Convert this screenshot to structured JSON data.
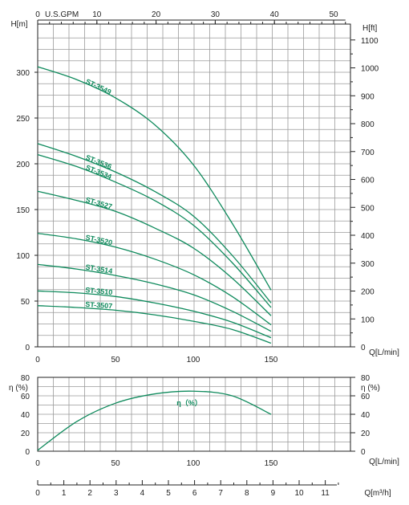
{
  "chart_data": [
    {
      "type": "line",
      "title": "",
      "xlabel": "Q[L/min]",
      "ylabel": "H[m]",
      "ylabel_right": "H[ft]",
      "top_axis_label": "U.S.GPM",
      "xlim": [
        0,
        205
      ],
      "ylim": [
        0,
        345
      ],
      "x_ticks": [
        "0",
        "50",
        "100",
        "150"
      ],
      "y_ticks": [
        "0",
        "50",
        "100",
        "150",
        "200",
        "250",
        "300"
      ],
      "top_ticks": [
        "0",
        "10",
        "20",
        "30",
        "40",
        "50"
      ],
      "right_ticks": [
        "0",
        "100",
        "200",
        "300",
        "400",
        "500",
        "600",
        "700",
        "800",
        "900",
        "1000",
        "1100"
      ],
      "x": [
        0,
        25,
        50,
        75,
        100,
        125,
        150
      ],
      "series": [
        {
          "name": "ST-3549",
          "values": [
            306,
            292,
            272,
            243,
            199,
            135,
            62
          ]
        },
        {
          "name": "ST-3536",
          "values": [
            222,
            208,
            191,
            170,
            143,
            100,
            48
          ]
        },
        {
          "name": "ST-3534",
          "values": [
            210,
            197,
            180,
            160,
            133,
            92,
            43
          ]
        },
        {
          "name": "ST-3527",
          "values": [
            170,
            160,
            148,
            130,
            108,
            75,
            34
          ]
        },
        {
          "name": "ST-3520",
          "values": [
            124,
            118,
            109,
            96,
            79,
            55,
            24
          ]
        },
        {
          "name": "ST-3514",
          "values": [
            90,
            85,
            78,
            69,
            57,
            39,
            17
          ]
        },
        {
          "name": "ST-3510",
          "values": [
            61,
            59,
            55,
            48,
            39,
            27,
            10
          ]
        },
        {
          "name": "ST-3507",
          "values": [
            45,
            43,
            40,
            35,
            28,
            19,
            4
          ]
        }
      ]
    },
    {
      "type": "line",
      "title": "",
      "xlabel": "Q[L/min]",
      "ylabel": "η (%)",
      "ylim": [
        0,
        80
      ],
      "y_ticks": [
        "0",
        "20",
        "40",
        "60",
        "80"
      ],
      "x_ticks": [
        "0",
        "50",
        "100",
        "150"
      ],
      "x": [
        0,
        25,
        50,
        75,
        100,
        125,
        150
      ],
      "series": [
        {
          "name": "η（%）",
          "values": [
            1,
            32,
            52,
            62,
            65,
            60,
            40
          ]
        }
      ]
    }
  ],
  "flow_m3h_axis": {
    "label": "Q[m³/h]",
    "ticks": [
      "0",
      "1",
      "2",
      "3",
      "4",
      "5",
      "6",
      "7",
      "8",
      "9",
      "10",
      "11"
    ]
  },
  "colors": {
    "curve": "#0e8a5c",
    "grid": "#9a9a9a"
  }
}
